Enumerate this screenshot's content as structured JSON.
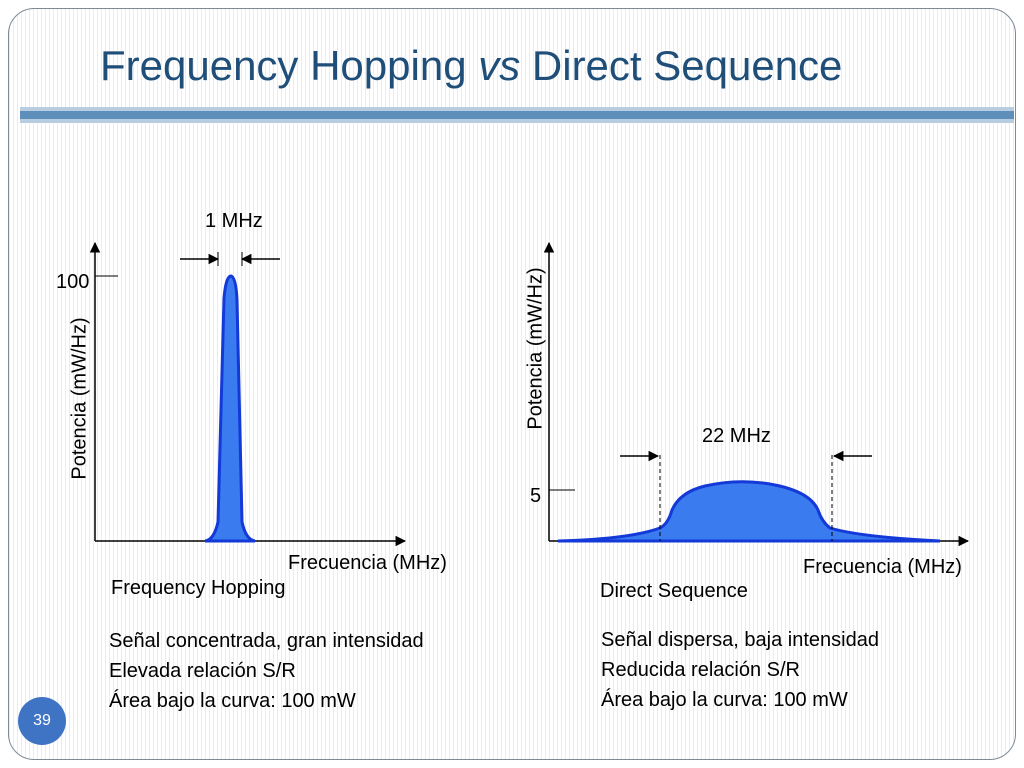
{
  "title": {
    "main": "Frequency Hopping",
    "italic": "vs",
    "rest": "Direct Sequence"
  },
  "left_panel": {
    "bandwidth_label": "1 MHz",
    "ytick_label": "100",
    "ylabel": "Potencia (mW/Hz)",
    "xlabel": "Frecuencia (MHz)",
    "caption": "Frequency Hopping",
    "notes": [
      "Señal concentrada, gran intensidad",
      "Elevada relación S/R",
      "Área bajo la curva: 100 mW"
    ]
  },
  "right_panel": {
    "bandwidth_label": "22 MHz",
    "ytick_label": "5",
    "ylabel": "Potencia (mW/Hz)",
    "xlabel": "Frecuencia (MHz)",
    "caption": "Direct Sequence",
    "notes": [
      "Señal dispersa, baja intensidad",
      "Reducida relación S/R",
      "Área bajo la curva: 100 mW"
    ]
  },
  "page_number": "39",
  "colors": {
    "title": "#1f4e79",
    "signal_fill": "#3a7bf0",
    "signal_stroke": "#1339d8"
  }
}
